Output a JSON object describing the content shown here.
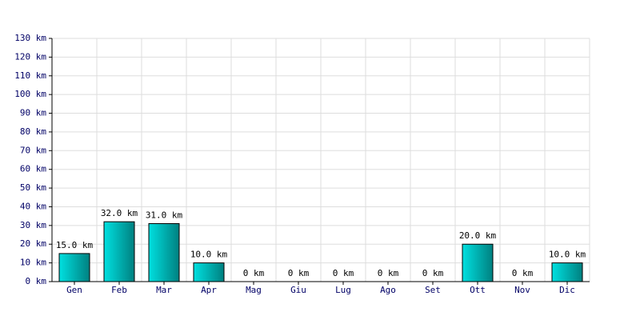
{
  "chart_data": {
    "type": "bar",
    "categories": [
      "Gen",
      "Feb",
      "Mar",
      "Apr",
      "Mag",
      "Giu",
      "Lug",
      "Ago",
      "Set",
      "Ott",
      "Nov",
      "Dic"
    ],
    "values": [
      15,
      32,
      31,
      10,
      0,
      0,
      0,
      0,
      0,
      20,
      0,
      10
    ],
    "value_labels": [
      "15.0 km",
      "32.0 km",
      "31.0 km",
      "10.0 km",
      "0 km",
      "0 km",
      "0 km",
      "0 km",
      "0 km",
      "20.0 km",
      "0 km",
      "10.0 km"
    ],
    "color": "#00e0e0",
    "ylim": [
      0,
      130
    ],
    "yticks": [
      {
        "value": 0,
        "label": "0 km"
      },
      {
        "value": 10,
        "label": "10 km"
      },
      {
        "value": 20,
        "label": "20 km"
      },
      {
        "value": 30,
        "label": "30 km"
      },
      {
        "value": 40,
        "label": "40 km"
      },
      {
        "value": 50,
        "label": "50 km"
      },
      {
        "value": 60,
        "label": "60 km"
      },
      {
        "value": 70,
        "label": "70 km"
      },
      {
        "value": 80,
        "label": "80 km"
      },
      {
        "value": 90,
        "label": "90 km"
      },
      {
        "value": 100,
        "label": "100 km"
      },
      {
        "value": 110,
        "label": "110 km"
      },
      {
        "value": 120,
        "label": "120 km"
      },
      {
        "value": 130,
        "label": "130 km"
      }
    ],
    "grid": true
  }
}
